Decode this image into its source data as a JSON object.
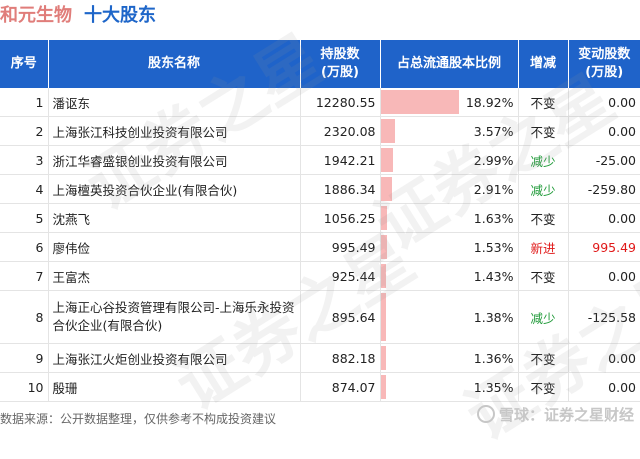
{
  "header": {
    "company": "和元生物",
    "subject": "十大股东"
  },
  "table": {
    "headers": {
      "rank": "序号",
      "name": "股东名称",
      "holding_line1": "持股数",
      "holding_line2": "(万股)",
      "ratio": "占总流通股本比例",
      "change": "增减",
      "delta_line1": "变动股数",
      "delta_line2": "(万股)"
    },
    "rows": [
      {
        "rank": "1",
        "name": "潘讴东",
        "holding": "12280.55",
        "ratio": "18.92%",
        "ratio_value": 18.92,
        "change": "不变",
        "change_type": "same",
        "delta": "0.00"
      },
      {
        "rank": "2",
        "name": "上海张江科技创业投资有限公司",
        "holding": "2320.08",
        "ratio": "3.57%",
        "ratio_value": 3.57,
        "change": "不变",
        "change_type": "same",
        "delta": "0.00"
      },
      {
        "rank": "3",
        "name": "浙江华睿盛银创业投资有限公司",
        "holding": "1942.21",
        "ratio": "2.99%",
        "ratio_value": 2.99,
        "change": "减少",
        "change_type": "down",
        "delta": "-25.00"
      },
      {
        "rank": "4",
        "name": "上海檀英投资合伙企业(有限合伙)",
        "holding": "1886.34",
        "ratio": "2.91%",
        "ratio_value": 2.91,
        "change": "减少",
        "change_type": "down",
        "delta": "-259.80"
      },
      {
        "rank": "5",
        "name": "沈燕飞",
        "holding": "1056.25",
        "ratio": "1.63%",
        "ratio_value": 1.63,
        "change": "不变",
        "change_type": "same",
        "delta": "0.00"
      },
      {
        "rank": "6",
        "name": "廖伟俭",
        "holding": "995.49",
        "ratio": "1.53%",
        "ratio_value": 1.53,
        "change": "新进",
        "change_type": "up",
        "delta": "995.49"
      },
      {
        "rank": "7",
        "name": "王富杰",
        "holding": "925.44",
        "ratio": "1.43%",
        "ratio_value": 1.43,
        "change": "不变",
        "change_type": "same",
        "delta": "0.00"
      },
      {
        "rank": "8",
        "name": "上海正心谷投资管理有限公司-上海乐永投资合伙企业(有限合伙)",
        "holding": "895.64",
        "ratio": "1.38%",
        "ratio_value": 1.38,
        "change": "减少",
        "change_type": "down",
        "delta": "-125.58"
      },
      {
        "rank": "9",
        "name": "上海张江火炬创业投资有限公司",
        "holding": "882.18",
        "ratio": "1.36%",
        "ratio_value": 1.36,
        "change": "不变",
        "change_type": "same",
        "delta": "0.00"
      },
      {
        "rank": "10",
        "name": "殷珊",
        "holding": "874.07",
        "ratio": "1.35%",
        "ratio_value": 1.35,
        "change": "不变",
        "change_type": "same",
        "delta": "0.00"
      }
    ]
  },
  "footer": {
    "source": "数据来源：公开数据整理，仅供参考不构成投资建议",
    "brand": "雪球：证券之星财经"
  },
  "watermark": {
    "text": "证券之星"
  },
  "colors": {
    "header_bg": "#1f63c9",
    "bar": "#f8b8b8",
    "up": "#e01818",
    "down": "#1f9a38",
    "company": "#e07d7a",
    "subject": "#1e66c9"
  }
}
